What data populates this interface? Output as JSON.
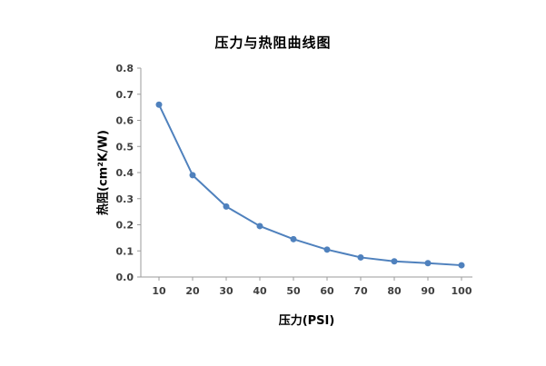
{
  "title": "压力与热阻曲线图",
  "chart_data": {
    "type": "line",
    "title": "压力与热阻曲线图",
    "xlabel": "压力(PSI)",
    "ylabel": "热阻(cm²K/W)",
    "x": [
      10,
      20,
      30,
      40,
      50,
      60,
      70,
      80,
      90,
      100
    ],
    "values": [
      0.66,
      0.39,
      0.27,
      0.195,
      0.145,
      0.105,
      0.075,
      0.06,
      0.053,
      0.045
    ],
    "ylim": [
      0,
      0.8
    ],
    "ytick_step": 0.1,
    "xticks": [
      10,
      20,
      30,
      40,
      50,
      60,
      70,
      80,
      90,
      100
    ],
    "grid": false,
    "legend": "none",
    "line_color": "#4f81bd",
    "marker_color": "#4f81bd",
    "axis_color": "#9b9b9b",
    "tick_text_color": "#3f3f3f"
  }
}
